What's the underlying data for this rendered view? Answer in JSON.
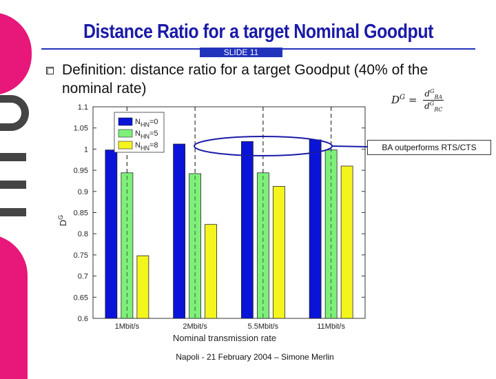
{
  "slide": {
    "title": "Distance Ratio for a target Nominal Goodput",
    "slide_label": "SLIDE 11",
    "definition": "Definition: distance ratio for a target Goodput (40% of the nominal rate)",
    "annotation": "BA outperforms RTS/CTS",
    "footer": "Napoli - 21 February 2004 – Simone Merlin",
    "formula": {
      "lhs": "D",
      "lhs_sup": "G",
      "equals": "=",
      "num": "d",
      "num_sup": "G",
      "num_sub": "BA",
      "den": "d",
      "den_sup": "G",
      "den_sub": "RC"
    }
  },
  "chart_data": {
    "type": "bar",
    "categories": [
      "1Mbit/s",
      "2Mbit/s",
      "5.5Mbit/s",
      "11Mbit/s"
    ],
    "series": [
      {
        "name": "N_HN=0",
        "legend_main": "N",
        "legend_sub": "HN",
        "legend_suffix": "=0",
        "color": "#0a14d8",
        "values": [
          0.998,
          1.012,
          1.018,
          1.022
        ]
      },
      {
        "name": "N_HN=5",
        "legend_main": "N",
        "legend_sub": "HN",
        "legend_suffix": "=5",
        "color": "#7ef07a",
        "values": [
          0.944,
          0.942,
          0.944,
          0.998
        ]
      },
      {
        "name": "N_HN=8",
        "legend_main": "N",
        "legend_sub": "HN",
        "legend_suffix": "=8",
        "color": "#f5f51e",
        "values": [
          0.748,
          0.822,
          0.912,
          0.96
        ]
      }
    ],
    "yticks": [
      "0.6",
      "0.65",
      "0.7",
      "0.75",
      "0.8",
      "0.85",
      "0.9",
      "0.95",
      "1",
      "1.05",
      "1.1"
    ],
    "ylim": [
      0.6,
      1.1
    ],
    "xlabel": "Nominal transmission rate",
    "ylabel": "D",
    "ylabel_sup": "G",
    "grid": "vertical dashed at categories",
    "legend_position": "top-left"
  }
}
